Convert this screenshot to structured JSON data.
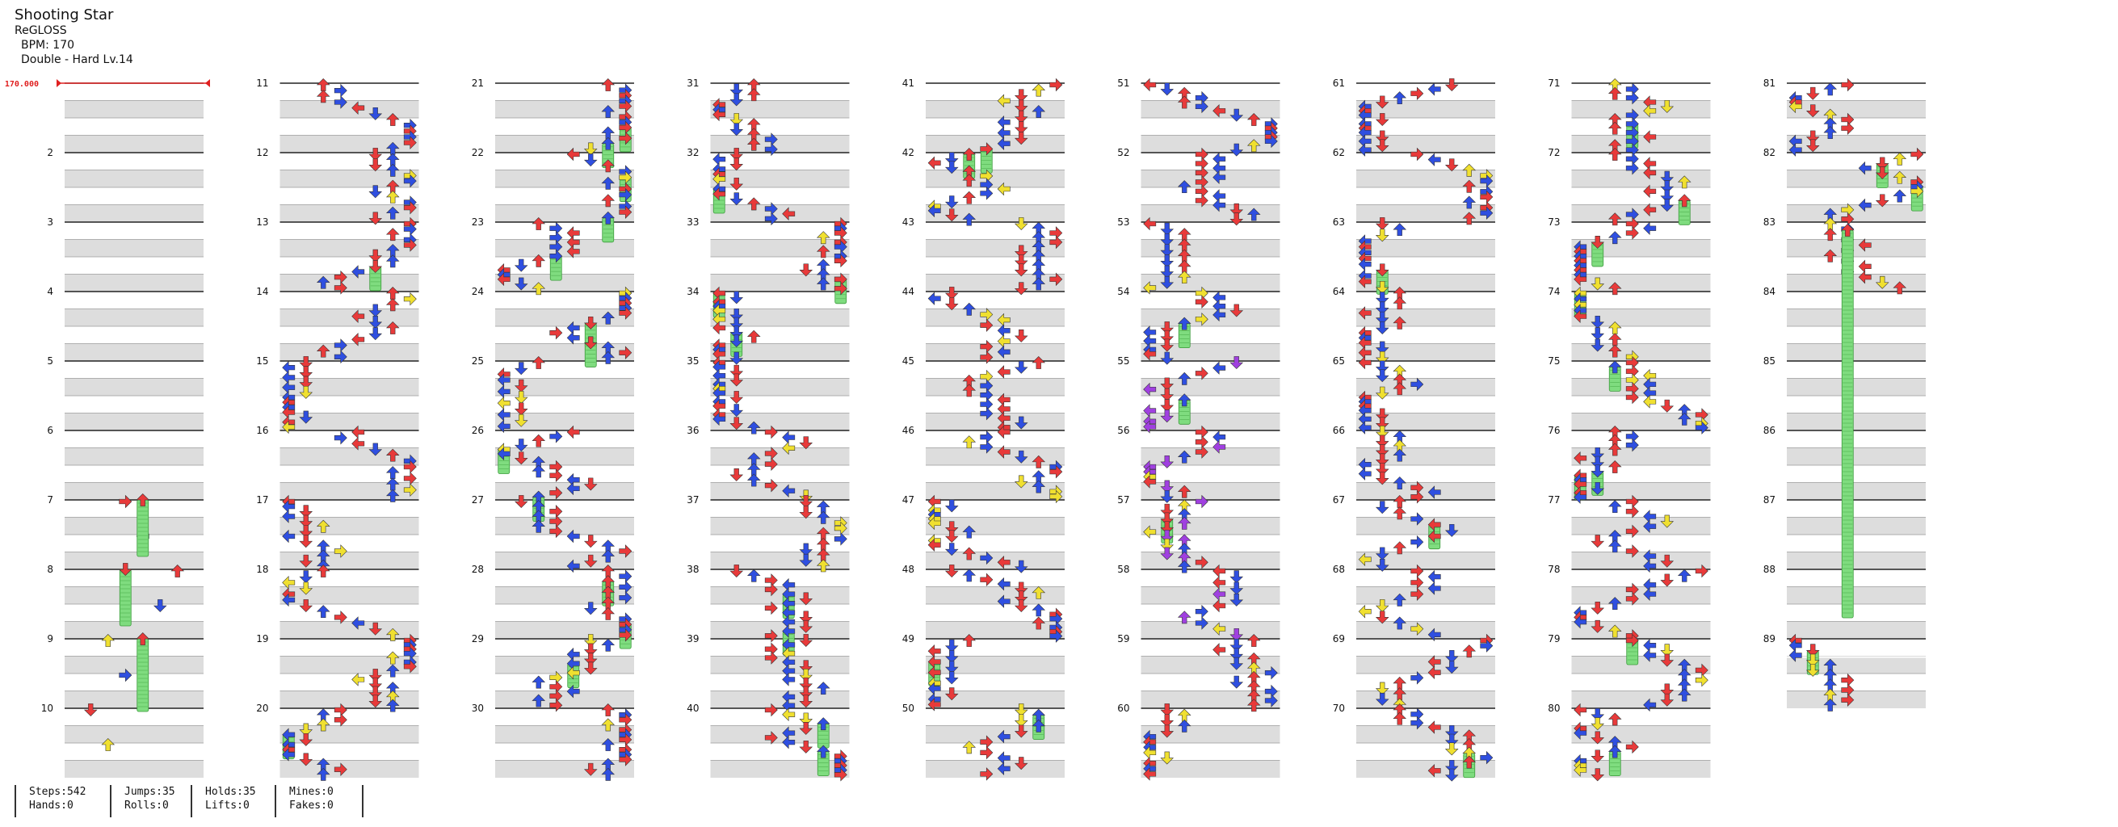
{
  "song": {
    "title": "Shooting Star",
    "artist": "ReGLOSS",
    "bpm_label": "BPM: 170",
    "difficulty_label": "Double - Hard Lv.14",
    "bpm_marker": "170.000"
  },
  "stats": [
    {
      "top": "Steps:542",
      "bottom": "Hands:0"
    },
    {
      "top": "Jumps:35",
      "bottom": "Rolls:0"
    },
    {
      "top": "Holds:35",
      "bottom": "Lifts:0"
    },
    {
      "top": "Mines:0",
      "bottom": "Fakes:0"
    }
  ],
  "colors": {
    "quarter": "#e83a3a",
    "eighth": "#2f4fe0",
    "sixteenth": "#f0e030",
    "twelfth": "#a040e0",
    "hold": "#7fdc7f",
    "stripe": "#dddddd",
    "beat_line": "#222222"
  },
  "measures": {
    "first": 1,
    "last": 89,
    "labeled": [
      2,
      3,
      4,
      5,
      6,
      7,
      8,
      9,
      10,
      11,
      12,
      13,
      14,
      15,
      16,
      17,
      18,
      19,
      20,
      21,
      22,
      23,
      24,
      25,
      26,
      27,
      28,
      29,
      30,
      31,
      32,
      33,
      34,
      35,
      36,
      37,
      38,
      39,
      40,
      41,
      42,
      43,
      44,
      45,
      46,
      47,
      48,
      49,
      50,
      51,
      52,
      53,
      54,
      55,
      56,
      57,
      58,
      59,
      60,
      61,
      62,
      63,
      64,
      65,
      66,
      67,
      68,
      69,
      70,
      71,
      72,
      73,
      74,
      75,
      76,
      77,
      78,
      79,
      80,
      81,
      82,
      83,
      84,
      85,
      86,
      87,
      88,
      89
    ],
    "per_column": 10
  },
  "arrow_icons": {
    "left": "left-arrow-icon",
    "down": "down-arrow-icon",
    "up": "up-arrow-icon",
    "right": "right-arrow-icon"
  }
}
